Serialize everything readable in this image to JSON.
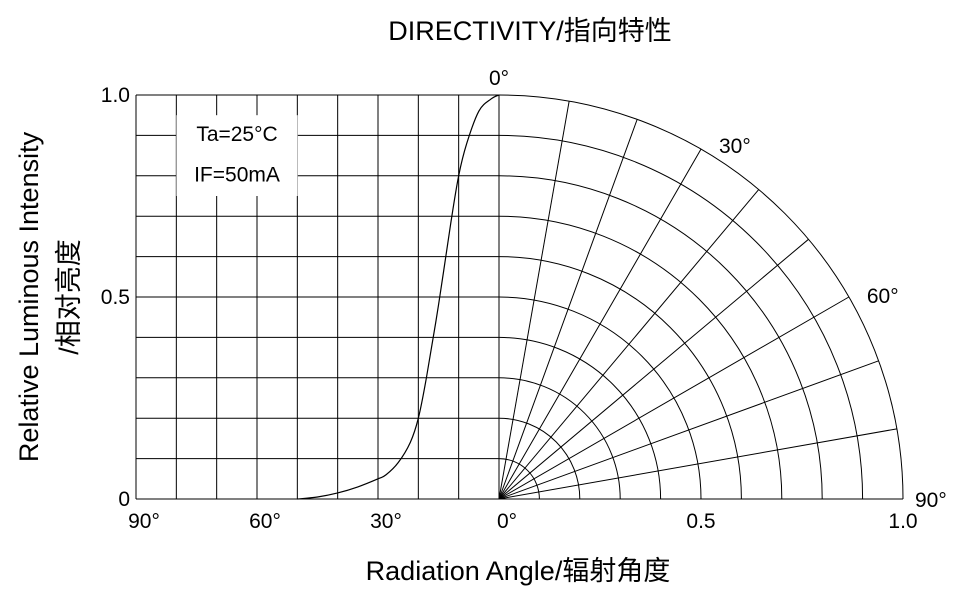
{
  "chart_data": {
    "type": "line",
    "title": "DIRECTIVITY/指向特性",
    "xlabel": "Radiation Angle/辐射角度",
    "ylabel_lines": [
      "Relative Luminous Intensity",
      "/相对亮度"
    ],
    "x_tick_labels_left": [
      "90°",
      "60°",
      "30°",
      "0°"
    ],
    "x_tick_labels_right": [
      "0.5",
      "1.0"
    ],
    "y_tick_labels": [
      "1.0",
      "0.5",
      "0"
    ],
    "polar_angle_labels": [
      "0°",
      "30°",
      "60°",
      "90°"
    ],
    "annotations": [
      "Ta=25°C",
      "IF=50mA"
    ],
    "grid": true,
    "polar_radial_step_deg": 10,
    "polar_ring_step": 0.1,
    "xlim_angle_deg": [
      90,
      0
    ],
    "ylim": [
      0,
      1.0
    ],
    "series": [
      {
        "angle_deg": [
          0,
          2,
          5,
          8,
          10,
          12,
          15,
          18,
          20,
          22,
          25,
          28,
          30,
          35,
          40,
          45,
          50
        ],
        "values": [
          1.0,
          0.99,
          0.96,
          0.88,
          0.8,
          0.68,
          0.48,
          0.3,
          0.2,
          0.14,
          0.09,
          0.06,
          0.05,
          0.03,
          0.015,
          0.005,
          0.0
        ]
      }
    ]
  }
}
